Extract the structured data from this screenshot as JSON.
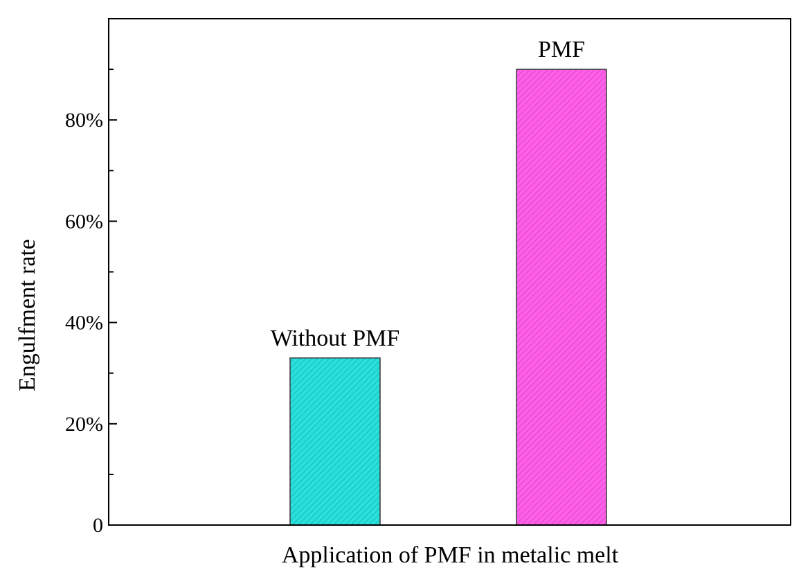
{
  "chart_data": {
    "type": "bar",
    "categories": [
      "Without PMF",
      "PMF"
    ],
    "values": [
      33,
      90
    ],
    "value_unit": "%",
    "bar_colors": [
      "#28e0dc",
      "#ff5fe8"
    ],
    "pattern": "diagonal-hatch",
    "title": "",
    "xlabel": "Application of PMF in metalic melt",
    "ylabel": "Engulfment rate",
    "ylim": [
      0,
      100
    ],
    "yticks_major": [
      0,
      20,
      40,
      60,
      80
    ],
    "yticks_labels": [
      "0",
      "20%",
      "40%",
      "60%",
      "80%"
    ],
    "yticks_minor_step": 10,
    "grid": false,
    "legend": "none"
  }
}
